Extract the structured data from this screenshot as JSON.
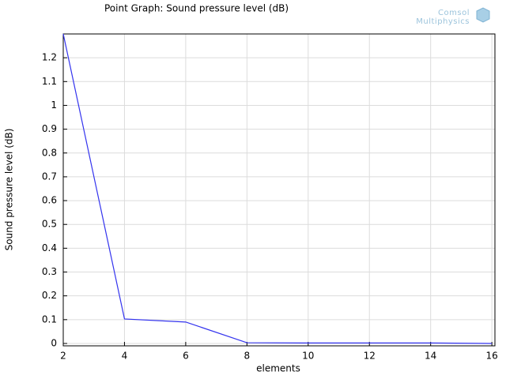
{
  "chart_data": {
    "type": "line",
    "title": "Point Graph: Sound pressure level (dB)",
    "logo": [
      "Comsol",
      "Multiphysics"
    ],
    "x_label": "elements",
    "y_label": "Sound pressure level (dB)",
    "x": [
      2,
      4,
      6,
      8,
      10,
      12,
      14,
      16
    ],
    "series": [
      {
        "color": "#3333ee",
        "values": [
          1.3,
          0.103,
          0.09,
          0.003,
          0.002,
          0.002,
          0.002,
          0.0
        ]
      }
    ],
    "xlim": [
      2,
      16.1
    ],
    "xticks": [
      2,
      4,
      6,
      8,
      10,
      12,
      14,
      16
    ],
    "ylim": [
      -0.01,
      1.3
    ],
    "yticks": [
      0,
      0.1,
      0.2,
      0.3,
      0.4,
      0.5,
      0.6,
      0.7,
      0.8,
      0.9,
      1,
      1.1,
      1.2
    ],
    "grid": true
  }
}
